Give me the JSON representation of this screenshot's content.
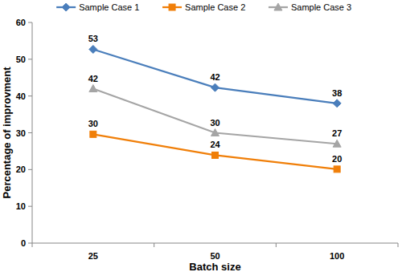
{
  "chart_data": {
    "type": "line",
    "x_label": "Batch size",
    "y_label": "Percentage of improvment",
    "categories": [
      25,
      50,
      100
    ],
    "series": [
      {
        "name": "Sample Case 1",
        "color": "#4a7ebb",
        "marker": "diamond",
        "line_style": "solid",
        "values": [
          52.7,
          42.3,
          38
        ],
        "value_labels": [
          "53",
          "42",
          "38"
        ]
      },
      {
        "name": "Sample Case 2",
        "color": "#f07f09",
        "marker": "square",
        "line_style": "solid",
        "values": [
          29.6,
          23.9,
          20.1
        ],
        "value_labels": [
          "30",
          "24",
          "20"
        ]
      },
      {
        "name": "Sample Case 3",
        "color": "#a5a5a5",
        "marker": "triangle",
        "line_style": "solid",
        "values": [
          42,
          30,
          27
        ],
        "value_labels": [
          "42",
          "30",
          "27"
        ]
      }
    ],
    "ylim": [
      0,
      60
    ],
    "yticks": [
      0,
      10,
      20,
      30,
      40,
      50,
      60
    ],
    "grid": false,
    "legend": "top",
    "data_labels": true
  }
}
